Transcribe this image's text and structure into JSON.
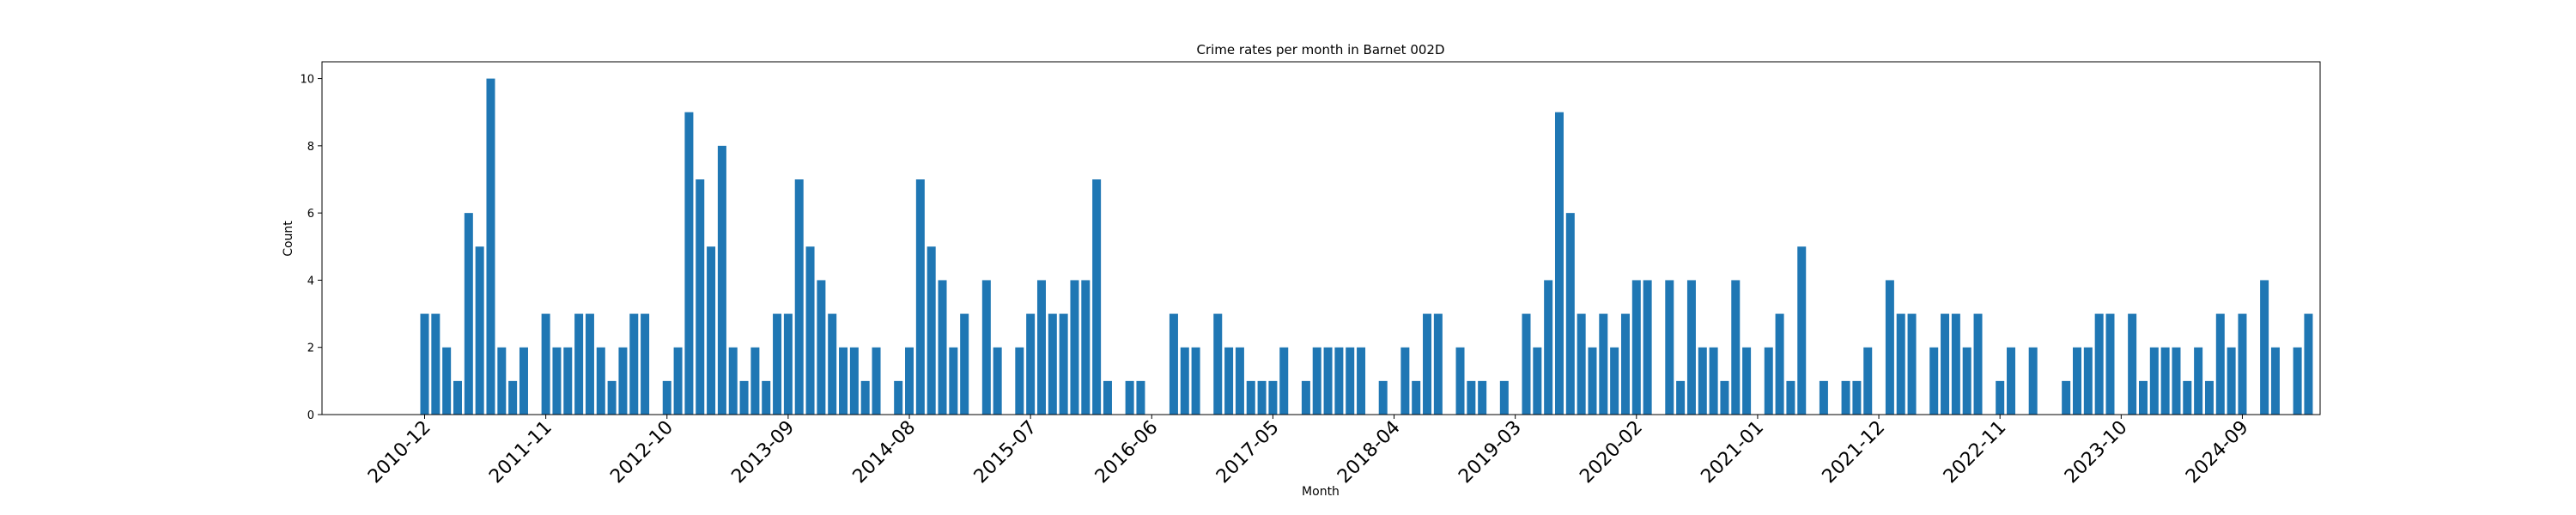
{
  "chart_data": {
    "type": "bar",
    "title": "Crime rates per month in Barnet 002D",
    "xlabel": "Month",
    "ylabel": "Count",
    "ylim": [
      0,
      10.5
    ],
    "yticks": [
      0,
      2,
      4,
      6,
      8,
      10
    ],
    "grid": false,
    "bar_color": "#1f77b4",
    "start_month": "2010-12",
    "values": [
      3,
      3,
      2,
      1,
      6,
      5,
      10,
      2,
      1,
      2,
      0,
      3,
      2,
      2,
      3,
      3,
      2,
      1,
      2,
      3,
      3,
      0,
      1,
      2,
      9,
      7,
      5,
      8,
      2,
      1,
      2,
      1,
      3,
      3,
      7,
      5,
      4,
      3,
      2,
      2,
      1,
      2,
      0,
      1,
      2,
      7,
      5,
      4,
      2,
      3,
      0,
      4,
      2,
      0,
      2,
      3,
      4,
      3,
      3,
      4,
      4,
      7,
      1,
      0,
      1,
      1,
      0,
      0,
      3,
      2,
      2,
      0,
      3,
      2,
      2,
      1,
      1,
      1,
      2,
      0,
      1,
      2,
      2,
      2,
      2,
      2,
      0,
      1,
      0,
      2,
      1,
      3,
      3,
      0,
      2,
      1,
      1,
      0,
      1,
      0,
      3,
      2,
      4,
      9,
      6,
      3,
      2,
      3,
      2,
      3,
      4,
      4,
      0,
      4,
      1,
      4,
      2,
      2,
      1,
      4,
      2,
      0,
      2,
      3,
      1,
      5,
      0,
      1,
      0,
      1,
      1,
      2,
      0,
      4,
      3,
      3,
      0,
      2,
      3,
      3,
      2,
      3,
      0,
      1,
      2,
      0,
      2,
      0,
      0,
      1,
      2,
      2,
      3,
      3,
      0,
      3,
      1,
      2,
      2,
      2,
      1,
      2,
      1,
      3,
      2,
      3,
      0,
      4,
      2,
      0,
      2,
      3
    ],
    "xtick_labels": [
      "2010-12",
      "2011-11",
      "2012-10",
      "2013-09",
      "2014-08",
      "2015-07",
      "2016-06",
      "2017-05",
      "2018-04",
      "2019-03",
      "2020-02",
      "2021-01",
      "2021-12",
      "2022-11",
      "2023-10",
      "2024-09"
    ]
  }
}
